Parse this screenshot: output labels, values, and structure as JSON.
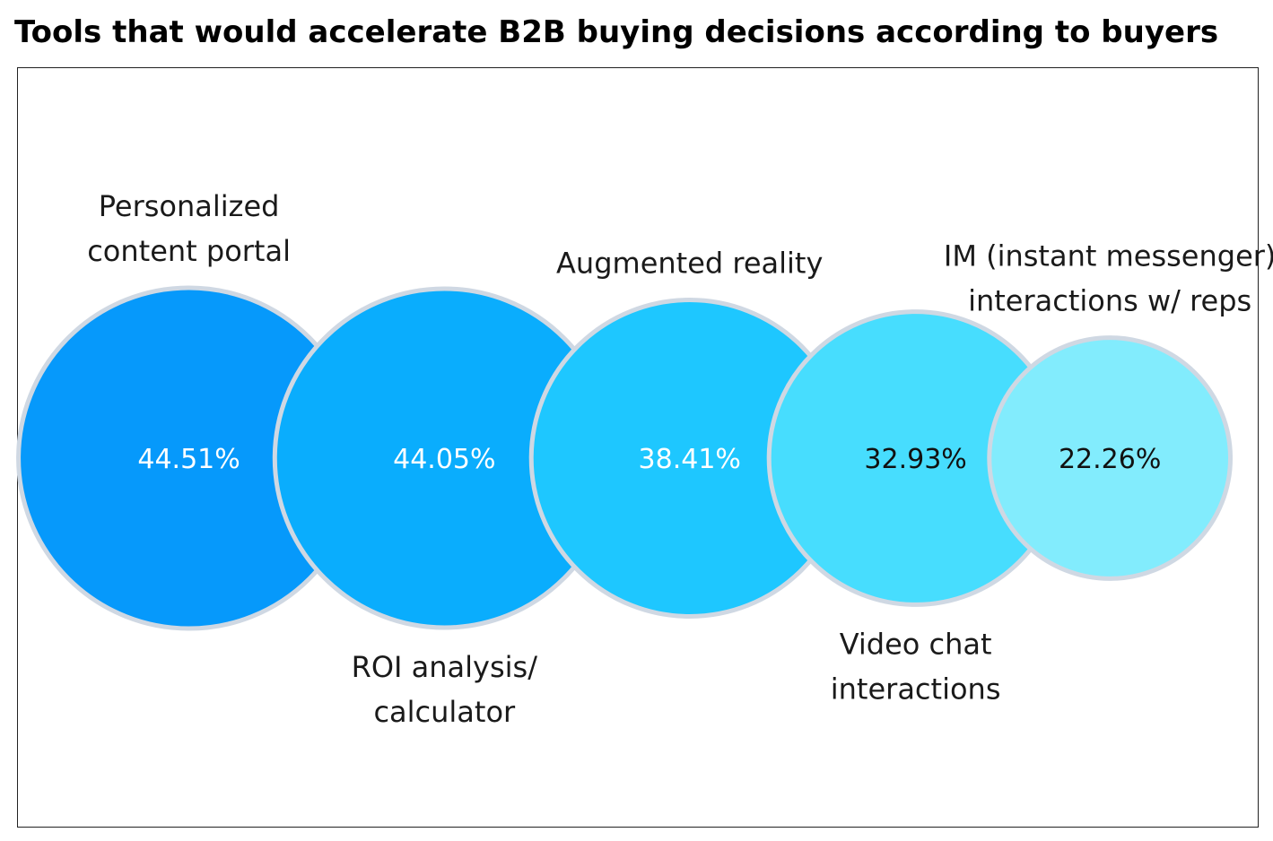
{
  "chart_data": {
    "type": "bubble",
    "title": "Tools that would accelerate B2B buying decisions according to buyers",
    "series": [
      {
        "name": "Personalized content portal",
        "label_lines": [
          "Personalized",
          "content portal"
        ],
        "value": 44.51,
        "value_label": "44.51%",
        "color": "#0699fb",
        "text_color": "#ffffff",
        "label_side": "top"
      },
      {
        "name": "ROI analysis/ calculator",
        "label_lines": [
          "ROI analysis/",
          "calculator"
        ],
        "value": 44.05,
        "value_label": "44.05%",
        "color": "#0aadfd",
        "text_color": "#ffffff",
        "label_side": "bottom"
      },
      {
        "name": "Augmented reality",
        "label_lines": [
          "Augmented reality"
        ],
        "value": 38.41,
        "value_label": "38.41%",
        "color": "#1ec7ff",
        "text_color": "#ffffff",
        "label_side": "top"
      },
      {
        "name": "Video chat interactions",
        "label_lines": [
          "Video chat",
          "interactions"
        ],
        "value": 32.93,
        "value_label": "32.93%",
        "color": "#47ddfe",
        "text_color": "#111111",
        "label_side": "bottom"
      },
      {
        "name": "IM (instant messenger) interactions w/ reps",
        "label_lines": [
          "IM (instant messenger)",
          "interactions w/ reps"
        ],
        "value": 22.26,
        "value_label": "22.26%",
        "color": "#82ecfd",
        "text_color": "#111111",
        "label_side": "top"
      }
    ],
    "outline_color": "#cfd8e3"
  }
}
